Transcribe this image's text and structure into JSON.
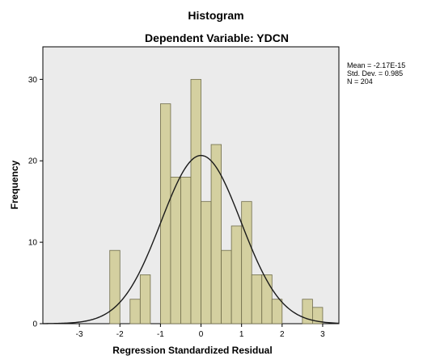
{
  "colors": {
    "plot_bg": "#ebebeb",
    "bar_fill": "#d4d0a0",
    "bar_stroke": "#6f6c4a",
    "curve": "#1a1a1a"
  },
  "chart_data": {
    "type": "bar",
    "title": "Histogram",
    "subtitle": "Dependent Variable: YDCN",
    "xlabel": "Regression Standardized Residual",
    "ylabel": "Frequency",
    "xlim": [
      -3.9,
      3.4
    ],
    "ylim": [
      0,
      34
    ],
    "xticks": [
      -3,
      -2,
      -1,
      0,
      1,
      2,
      3
    ],
    "yticks": [
      0,
      10,
      20,
      30
    ],
    "bin_width": 0.25,
    "bins": [
      {
        "x0": -2.25,
        "x1": -2.0,
        "count": 9
      },
      {
        "x0": -1.75,
        "x1": -1.5,
        "count": 3
      },
      {
        "x0": -1.5,
        "x1": -1.25,
        "count": 6
      },
      {
        "x0": -1.0,
        "x1": -0.75,
        "count": 27
      },
      {
        "x0": -0.75,
        "x1": -0.5,
        "count": 18
      },
      {
        "x0": -0.5,
        "x1": -0.25,
        "count": 18
      },
      {
        "x0": -0.25,
        "x1": 0.0,
        "count": 30
      },
      {
        "x0": 0.0,
        "x1": 0.25,
        "count": 15
      },
      {
        "x0": 0.25,
        "x1": 0.5,
        "count": 22
      },
      {
        "x0": 0.5,
        "x1": 0.75,
        "count": 9
      },
      {
        "x0": 0.75,
        "x1": 1.0,
        "count": 12
      },
      {
        "x0": 1.0,
        "x1": 1.25,
        "count": 15
      },
      {
        "x0": 1.25,
        "x1": 1.5,
        "count": 6
      },
      {
        "x0": 1.5,
        "x1": 1.75,
        "count": 6
      },
      {
        "x0": 1.75,
        "x1": 2.0,
        "count": 3
      },
      {
        "x0": 2.5,
        "x1": 2.75,
        "count": 3
      },
      {
        "x0": 2.75,
        "x1": 3.0,
        "count": 2
      }
    ],
    "normal_curve": {
      "mean": -2.17e-15,
      "std": 0.985,
      "n": 204
    },
    "stats_box": {
      "mean_text": "Mean = -2.17E-15",
      "std_text": "Std. Dev. = 0.985",
      "n_text": "N = 204"
    },
    "grid": false
  }
}
